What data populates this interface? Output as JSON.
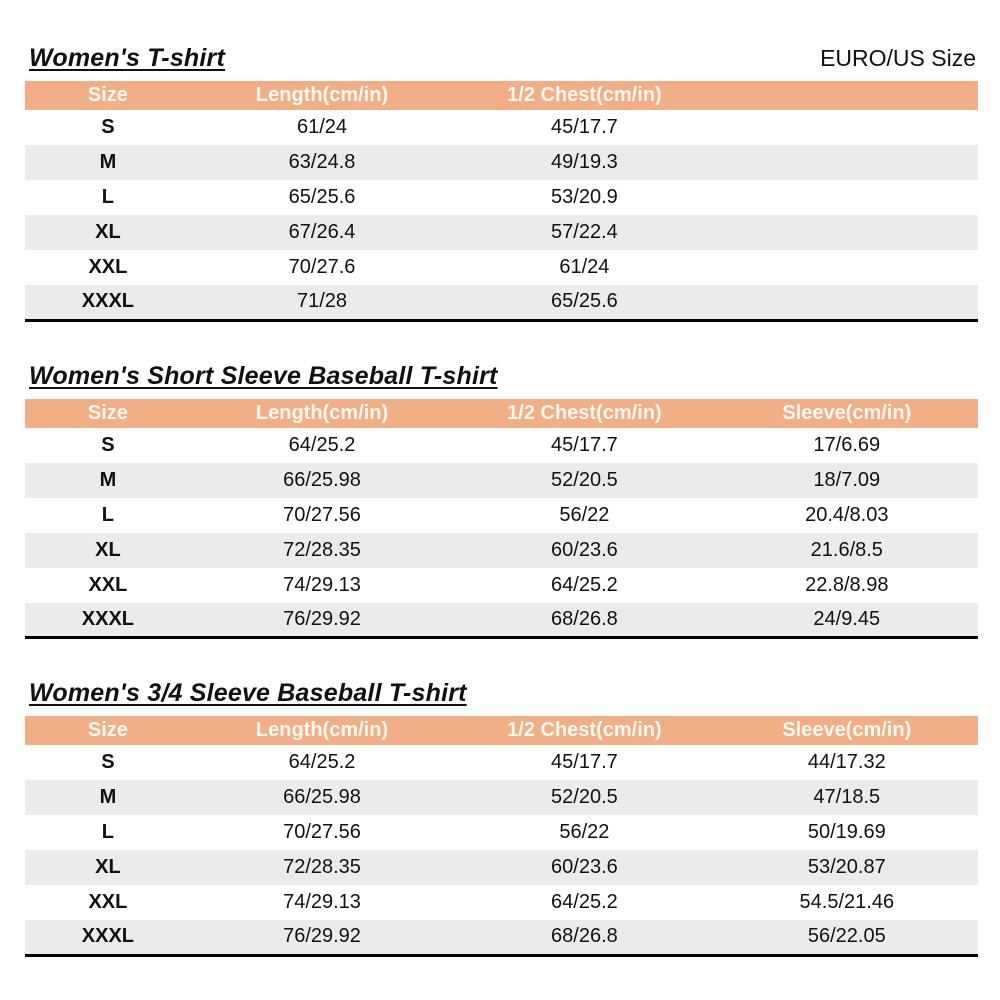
{
  "page": {
    "right_label": "EURO/US Size"
  },
  "colors": {
    "header_bg": "#F2AE85",
    "stripe_bg": "#EBEBEB",
    "header_text": "#FDF9F4",
    "border": "#000000"
  },
  "tables": [
    {
      "title": "Women's T-shirt",
      "columns": [
        "Size",
        "Length(cm/in)",
        "1/2 Chest(cm/in)",
        ""
      ],
      "rows": [
        [
          "S",
          "61/24",
          "45/17.7",
          ""
        ],
        [
          "M",
          "63/24.8",
          "49/19.3",
          ""
        ],
        [
          "L",
          "65/25.6",
          "53/20.9",
          ""
        ],
        [
          "XL",
          "67/26.4",
          "57/22.4",
          ""
        ],
        [
          "XXL",
          "70/27.6",
          "61/24",
          ""
        ],
        [
          "XXXL",
          "71/28",
          "65/25.6",
          ""
        ]
      ]
    },
    {
      "title": "Women's Short Sleeve Baseball T-shirt",
      "columns": [
        "Size",
        "Length(cm/in)",
        "1/2 Chest(cm/in)",
        "Sleeve(cm/in)"
      ],
      "rows": [
        [
          "S",
          "64/25.2",
          "45/17.7",
          "17/6.69"
        ],
        [
          "M",
          "66/25.98",
          "52/20.5",
          "18/7.09"
        ],
        [
          "L",
          "70/27.56",
          "56/22",
          "20.4/8.03"
        ],
        [
          "XL",
          "72/28.35",
          "60/23.6",
          "21.6/8.5"
        ],
        [
          "XXL",
          "74/29.13",
          "64/25.2",
          "22.8/8.98"
        ],
        [
          "XXXL",
          "76/29.92",
          "68/26.8",
          "24/9.45"
        ]
      ]
    },
    {
      "title": "Women's 3/4 Sleeve Baseball T-shirt",
      "columns": [
        "Size",
        "Length(cm/in)",
        "1/2 Chest(cm/in)",
        "Sleeve(cm/in)"
      ],
      "rows": [
        [
          "S",
          "64/25.2",
          "45/17.7",
          "44/17.32"
        ],
        [
          "M",
          "66/25.98",
          "52/20.5",
          "47/18.5"
        ],
        [
          "L",
          "70/27.56",
          "56/22",
          "50/19.69"
        ],
        [
          "XL",
          "72/28.35",
          "60/23.6",
          "53/20.87"
        ],
        [
          "XXL",
          "74/29.13",
          "64/25.2",
          "54.5/21.46"
        ],
        [
          "XXXL",
          "76/29.92",
          "68/26.8",
          "56/22.05"
        ]
      ]
    }
  ]
}
